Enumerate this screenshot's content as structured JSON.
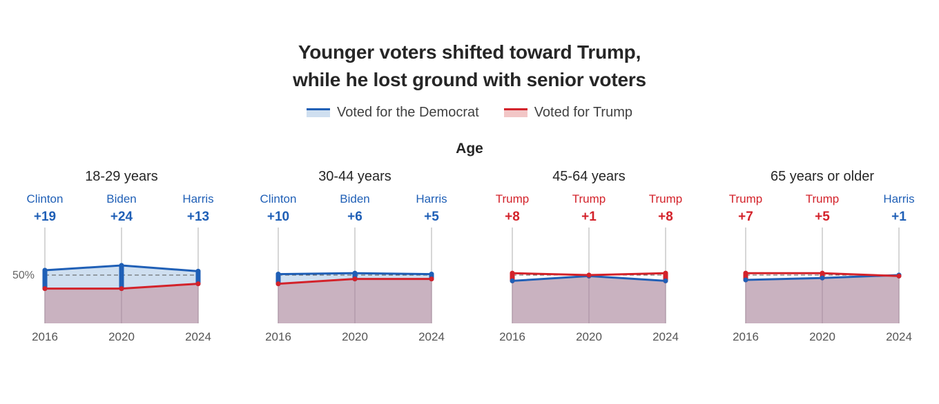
{
  "title_lines": [
    "Younger voters shifted toward Trump,",
    "while he lost ground with senior voters"
  ],
  "legend": [
    {
      "label": "Voted for the Democrat",
      "color": "#1f5fb6"
    },
    {
      "label": "Voted for Trump",
      "color": "#d3222a"
    }
  ],
  "section_label": "Age",
  "colors": {
    "dem": "#1f5fb6",
    "rep": "#d3222a",
    "dem_fill": "#cfdff0",
    "overlap_fill": "#c9b2c0",
    "axis_line": "#c8c8c8"
  },
  "chart_data": [
    {
      "type": "area",
      "title": "18-29 years",
      "x": [
        "2016",
        "2020",
        "2024"
      ],
      "ylim": [
        0,
        100
      ],
      "reference_line": {
        "value": 50,
        "label": "50%"
      },
      "winners": [
        {
          "name": "Clinton",
          "margin": "+19",
          "party": "dem"
        },
        {
          "name": "Biden",
          "margin": "+24",
          "party": "dem"
        },
        {
          "name": "Harris",
          "margin": "+13",
          "party": "dem"
        }
      ],
      "series": [
        {
          "name": "Voted for the Democrat",
          "values": [
            55,
            60,
            54
          ]
        },
        {
          "name": "Voted for Trump",
          "values": [
            36,
            36,
            41
          ]
        }
      ]
    },
    {
      "type": "area",
      "title": "30-44 years",
      "x": [
        "2016",
        "2020",
        "2024"
      ],
      "ylim": [
        0,
        100
      ],
      "winners": [
        {
          "name": "Clinton",
          "margin": "+10",
          "party": "dem"
        },
        {
          "name": "Biden",
          "margin": "+6",
          "party": "dem"
        },
        {
          "name": "Harris",
          "margin": "+5",
          "party": "dem"
        }
      ],
      "series": [
        {
          "name": "Voted for the Democrat",
          "values": [
            51,
            52,
            51
          ]
        },
        {
          "name": "Voted for Trump",
          "values": [
            41,
            46,
            46
          ]
        }
      ]
    },
    {
      "type": "area",
      "title": "45-64 years",
      "x": [
        "2016",
        "2020",
        "2024"
      ],
      "ylim": [
        0,
        100
      ],
      "winners": [
        {
          "name": "Trump",
          "margin": "+8",
          "party": "rep"
        },
        {
          "name": "Trump",
          "margin": "+1",
          "party": "rep"
        },
        {
          "name": "Trump",
          "margin": "+8",
          "party": "rep"
        }
      ],
      "series": [
        {
          "name": "Voted for the Democrat",
          "values": [
            44,
            49,
            44
          ]
        },
        {
          "name": "Voted for Trump",
          "values": [
            52,
            50,
            52
          ]
        }
      ]
    },
    {
      "type": "area",
      "title": "65 years or older",
      "x": [
        "2016",
        "2020",
        "2024"
      ],
      "ylim": [
        0,
        100
      ],
      "winners": [
        {
          "name": "Trump",
          "margin": "+7",
          "party": "rep"
        },
        {
          "name": "Trump",
          "margin": "+5",
          "party": "rep"
        },
        {
          "name": "Harris",
          "margin": "+1",
          "party": "dem"
        }
      ],
      "series": [
        {
          "name": "Voted for the Democrat",
          "values": [
            45,
            47,
            50
          ]
        },
        {
          "name": "Voted for Trump",
          "values": [
            52,
            52,
            49
          ]
        }
      ]
    }
  ]
}
